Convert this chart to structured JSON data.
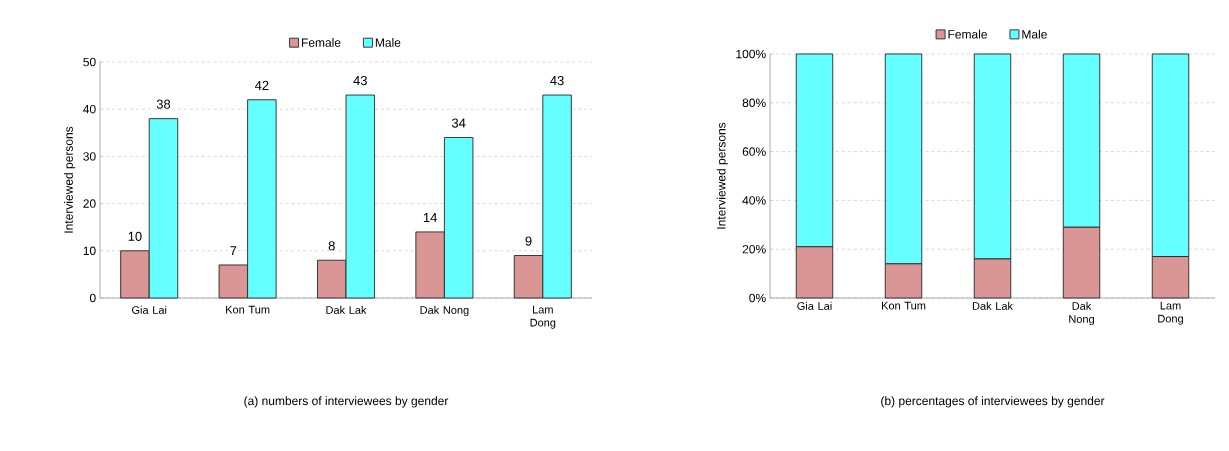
{
  "chart_data": [
    {
      "type": "bar",
      "categories": [
        "Gia Lai",
        "Kon Tum",
        "Dak Lak",
        "Dak Nong",
        "Lam Dong"
      ],
      "ylabel": "Interviewed persons",
      "series": [
        {
          "name": "Female",
          "color": "#d99694",
          "values": [
            10,
            7,
            8,
            14,
            9
          ]
        },
        {
          "name": "Male",
          "color": "#66ffff",
          "values": [
            38,
            42,
            43,
            34,
            43
          ]
        }
      ],
      "ylim": [
        0,
        50
      ],
      "yticks": [
        0,
        10,
        20,
        30,
        40,
        50
      ],
      "grid": "y",
      "legend": "top",
      "data_labels": true,
      "annotations": [
        "(a) numbers of interviewees by gender"
      ]
    },
    {
      "type": "bar",
      "stacked": true,
      "categories": [
        "Gia Lai",
        "Kon Tum",
        "Dak Lak",
        "Dak Nong",
        "Lam Dong"
      ],
      "ylabel": "Interviewed persons",
      "series": [
        {
          "name": "Female",
          "color": "#d99694",
          "values": [
            21,
            14,
            16,
            29,
            17
          ]
        },
        {
          "name": "Male",
          "color": "#66ffff",
          "values": [
            79,
            86,
            84,
            71,
            83
          ]
        }
      ],
      "ylim": [
        0,
        100
      ],
      "yticks": [
        {
          "value": 0,
          "label": "0%"
        },
        {
          "value": 20,
          "label": "20%"
        },
        {
          "value": 40,
          "label": "40%"
        },
        {
          "value": 60,
          "label": "60%"
        },
        {
          "value": 80,
          "label": "80%"
        },
        {
          "value": 100,
          "label": "100%"
        }
      ],
      "grid": "y",
      "legend": "top",
      "annotations": [
        "(b) percentages of interviewees by gender"
      ]
    }
  ]
}
